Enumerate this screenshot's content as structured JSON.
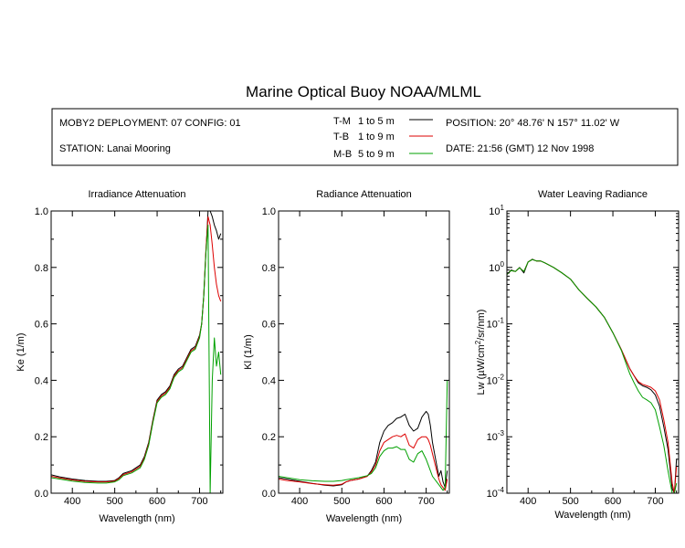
{
  "title": "Marine Optical Buoy NOAA/MLML",
  "info": {
    "deployment": "MOBY2 DEPLOYMENT: 07 CONFIG: 01",
    "station": "STATION: Lanai Mooring",
    "position": "POSITION: 20° 48.76' N   157° 11.02' W",
    "date": "DATE: 21:56 (GMT) 12 Nov 1998"
  },
  "legend": [
    {
      "code": "T-M",
      "range": "1 to 5  m",
      "color": "#000000"
    },
    {
      "code": "T-B",
      "range": "1 to 9  m",
      "color": "#dd0000"
    },
    {
      "code": "M-B",
      "range": "5 to 9  m",
      "color": "#00a000"
    }
  ],
  "chart_data": [
    {
      "type": "line",
      "title": "Irradiance Attenuation",
      "xlabel": "Wavelength (nm)",
      "ylabel": "Ke  (1/m)",
      "xlim": [
        350,
        755
      ],
      "ylim": [
        0,
        1.0
      ],
      "xticks": [
        400,
        500,
        600,
        700
      ],
      "yticks": [
        0.0,
        0.2,
        0.4,
        0.6,
        0.8,
        1.0
      ],
      "ytick_labels": [
        "0.0",
        "0.2",
        "0.4",
        "0.6",
        "0.8",
        "1.0"
      ],
      "x": [
        350,
        370,
        400,
        430,
        460,
        480,
        500,
        510,
        520,
        540,
        560,
        570,
        580,
        590,
        600,
        610,
        620,
        630,
        640,
        650,
        660,
        670,
        680,
        690,
        700,
        705,
        710,
        715,
        720,
        725,
        730,
        735,
        740,
        745,
        750
      ],
      "series": [
        {
          "name": "T-M",
          "values": [
            0.065,
            0.058,
            0.05,
            0.045,
            0.042,
            0.042,
            0.045,
            0.055,
            0.07,
            0.08,
            0.1,
            0.13,
            0.18,
            0.26,
            0.33,
            0.35,
            0.36,
            0.38,
            0.42,
            0.44,
            0.45,
            0.48,
            0.51,
            0.52,
            0.56,
            0.6,
            0.7,
            0.85,
            1.0,
            1.0,
            0.98,
            0.95,
            0.93,
            0.9,
            0.92
          ]
        },
        {
          "name": "T-B",
          "values": [
            0.06,
            0.054,
            0.047,
            0.042,
            0.04,
            0.04,
            0.043,
            0.052,
            0.066,
            0.076,
            0.095,
            0.125,
            0.175,
            0.255,
            0.325,
            0.345,
            0.355,
            0.375,
            0.415,
            0.435,
            0.445,
            0.475,
            0.505,
            0.515,
            0.555,
            0.6,
            0.7,
            0.86,
            0.98,
            0.95,
            0.88,
            0.8,
            0.74,
            0.7,
            0.68
          ]
        },
        {
          "name": "M-B",
          "values": [
            0.055,
            0.05,
            0.043,
            0.038,
            0.036,
            0.036,
            0.04,
            0.048,
            0.062,
            0.072,
            0.09,
            0.12,
            0.17,
            0.25,
            0.32,
            0.34,
            0.35,
            0.37,
            0.41,
            0.43,
            0.44,
            0.47,
            0.5,
            0.51,
            0.55,
            0.6,
            0.7,
            0.85,
            0.95,
            0.0,
            0.4,
            0.55,
            0.45,
            0.5,
            0.42
          ]
        }
      ]
    },
    {
      "type": "line",
      "title": "Radiance Attenuation",
      "xlabel": "Wavelength (nm)",
      "ylabel": "Kl  (1/m)",
      "xlim": [
        350,
        755
      ],
      "ylim": [
        0,
        1.0
      ],
      "xticks": [
        400,
        500,
        600,
        700
      ],
      "yticks": [
        0.0,
        0.2,
        0.4,
        0.6,
        0.8,
        1.0
      ],
      "ytick_labels": [
        "0.0",
        "0.2",
        "0.4",
        "0.6",
        "0.8",
        "1.0"
      ],
      "x": [
        350,
        370,
        400,
        430,
        460,
        480,
        500,
        510,
        520,
        540,
        560,
        570,
        580,
        590,
        600,
        610,
        620,
        630,
        640,
        650,
        660,
        670,
        680,
        690,
        700,
        705,
        710,
        715,
        720,
        725,
        730,
        735,
        740,
        745,
        750
      ],
      "series": [
        {
          "name": "T-M",
          "values": [
            0.055,
            0.05,
            0.042,
            0.035,
            0.028,
            0.026,
            0.03,
            0.04,
            0.045,
            0.05,
            0.06,
            0.08,
            0.11,
            0.18,
            0.22,
            0.24,
            0.25,
            0.265,
            0.27,
            0.28,
            0.24,
            0.22,
            0.23,
            0.27,
            0.29,
            0.28,
            0.24,
            0.18,
            0.14,
            0.1,
            0.06,
            0.08,
            0.04,
            0.02,
            0.08
          ]
        },
        {
          "name": "T-B",
          "values": [
            0.05,
            0.045,
            0.04,
            0.034,
            0.03,
            0.028,
            0.032,
            0.04,
            0.045,
            0.05,
            0.06,
            0.075,
            0.1,
            0.15,
            0.18,
            0.19,
            0.2,
            0.205,
            0.2,
            0.21,
            0.17,
            0.16,
            0.19,
            0.2,
            0.2,
            0.19,
            0.17,
            0.14,
            0.11,
            0.08,
            0.05,
            0.03,
            0.02,
            0.01,
            0.05
          ]
        },
        {
          "name": "M-B",
          "values": [
            0.06,
            0.055,
            0.048,
            0.044,
            0.042,
            0.042,
            0.045,
            0.048,
            0.05,
            0.055,
            0.062,
            0.07,
            0.09,
            0.13,
            0.15,
            0.16,
            0.16,
            0.165,
            0.155,
            0.155,
            0.12,
            0.11,
            0.14,
            0.15,
            0.12,
            0.1,
            0.08,
            0.06,
            0.05,
            0.04,
            0.03,
            0.02,
            0.01,
            0.02,
            0.4
          ]
        }
      ]
    },
    {
      "type": "line",
      "title": "Water Leaving Radiance",
      "xlabel": "Wavelength (nm)",
      "ylabel": "Lw  (µW/cm²/sr/nm)",
      "ylabel_parts": [
        "Lw  (",
        "µ",
        "W/cm",
        "2",
        "/sr/nm)"
      ],
      "xlim": [
        350,
        755
      ],
      "ylim": [
        0.0001,
        10
      ],
      "yscale": "log",
      "xticks": [
        400,
        500,
        600,
        700
      ],
      "yticks": [
        0.0001,
        0.001,
        0.01,
        0.1,
        1,
        10
      ],
      "ytick_labels": [
        {
          "base": "10",
          "exp": "-4"
        },
        {
          "base": "10",
          "exp": "-3"
        },
        {
          "base": "10",
          "exp": "-2"
        },
        {
          "base": "10",
          "exp": "-1"
        },
        {
          "base": "10",
          "exp": "0"
        },
        {
          "base": "10",
          "exp": "1"
        }
      ],
      "x": [
        350,
        360,
        370,
        380,
        390,
        400,
        410,
        420,
        430,
        440,
        460,
        480,
        500,
        520,
        540,
        560,
        580,
        600,
        620,
        640,
        650,
        660,
        670,
        680,
        690,
        700,
        710,
        720,
        730,
        740,
        745,
        750
      ],
      "series": [
        {
          "name": "T-M",
          "values": [
            0.75,
            0.9,
            0.85,
            1.0,
            0.8,
            1.25,
            1.4,
            1.3,
            1.3,
            1.2,
            1.0,
            0.8,
            0.62,
            0.4,
            0.28,
            0.2,
            0.13,
            0.07,
            0.035,
            0.016,
            0.012,
            0.009,
            0.008,
            0.0075,
            0.0068,
            0.0055,
            0.0035,
            0.0015,
            0.0006,
            0.00012,
            0.0001,
            0.0004
          ]
        },
        {
          "name": "T-B",
          "values": [
            0.75,
            0.88,
            0.85,
            0.98,
            0.85,
            1.25,
            1.38,
            1.3,
            1.3,
            1.2,
            1.0,
            0.8,
            0.62,
            0.4,
            0.28,
            0.2,
            0.13,
            0.07,
            0.035,
            0.016,
            0.012,
            0.0095,
            0.0085,
            0.008,
            0.0075,
            0.0065,
            0.0045,
            0.002,
            0.0008,
            0.00015,
            0.0001,
            0.0003
          ]
        },
        {
          "name": "M-B",
          "values": [
            0.75,
            0.88,
            0.85,
            0.98,
            0.85,
            1.25,
            1.38,
            1.3,
            1.3,
            1.2,
            1.0,
            0.8,
            0.62,
            0.4,
            0.28,
            0.2,
            0.13,
            0.07,
            0.034,
            0.013,
            0.009,
            0.0065,
            0.005,
            0.0045,
            0.004,
            0.003,
            0.0015,
            0.0007,
            0.00025,
            0.0001,
            0.0001,
            0.00015
          ]
        }
      ]
    }
  ]
}
